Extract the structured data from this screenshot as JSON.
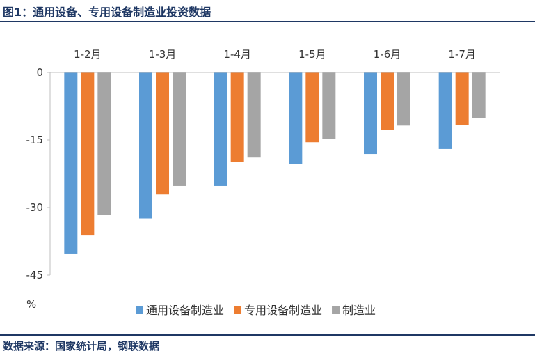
{
  "figure": {
    "title": "图1：通用设备、专用设备制造业投资数据",
    "source": "数据来源：国家统计局，钢联数据"
  },
  "chart_data": {
    "type": "bar",
    "title": "图1：通用设备、专用设备制造业投资数据",
    "categories": [
      "1-2月",
      "1-3月",
      "1-4月",
      "1-5月",
      "1-6月",
      "1-7月"
    ],
    "series": [
      {
        "name": "通用设备制造业",
        "color": "#5b9bd5",
        "values": [
          -40.2,
          -32.4,
          -25.2,
          -20.3,
          -18.1,
          -17.0
        ]
      },
      {
        "name": "专用设备制造业",
        "color": "#ed7d31",
        "values": [
          -36.2,
          -27.1,
          -19.8,
          -15.5,
          -12.8,
          -11.7
        ]
      },
      {
        "name": "制造业",
        "color": "#a5a5a5",
        "values": [
          -31.6,
          -25.2,
          -18.9,
          -14.8,
          -11.8,
          -10.2
        ]
      }
    ],
    "yticks": [
      0,
      -15,
      -30,
      -45
    ],
    "ylim": [
      -45,
      0
    ],
    "ylabel": "%",
    "xlabel": "",
    "category_axis_position": "top",
    "legend_position": "bottom",
    "grid": false
  }
}
